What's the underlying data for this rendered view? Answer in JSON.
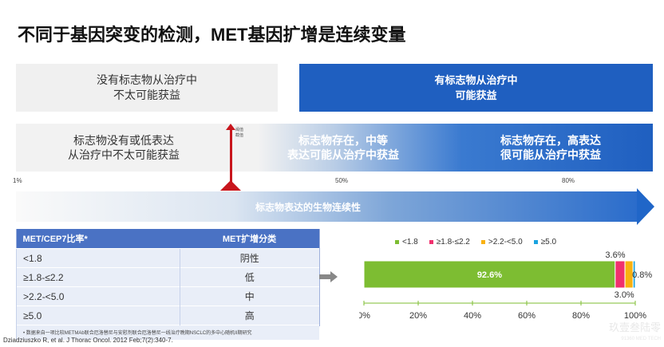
{
  "title": "不同于基因突变的检测，MET基因扩增是连续变量",
  "box_no_marker": [
    "没有标志物从治疗中",
    "不太可能获益"
  ],
  "box_marker": [
    "有标志物从治疗中",
    "可能获益"
  ],
  "row2": [
    [
      "标志物没有或低表达",
      "从治疗中不太可能获益"
    ],
    [
      "标志物存在，中等",
      "表达可能从治疗中获益"
    ],
    [
      "标志物存在，高表达",
      "很可能从治疗中获益"
    ]
  ],
  "threshold_label": [
    "阈值",
    "截值"
  ],
  "percent_marks": [
    "1%",
    "50%",
    "80%"
  ],
  "continuum_label": "标志物表达的生物连续性",
  "table": {
    "headers": [
      "MET/CEP7比率*",
      "MET扩增分类"
    ],
    "rows": [
      [
        "<1.8",
        "阴性"
      ],
      [
        "≥1.8-≤2.2",
        "低"
      ],
      [
        ">2.2-<5.0",
        "中"
      ],
      [
        "≥5.0",
        "高"
      ]
    ],
    "footnote": "• 数据来自一项比较METMAb联合厄洛替尼与安慰剂联合厄洛替尼一线治疗晚期NSCLC的多中心随机II期研究"
  },
  "citation": "Dziadziuszko R, et al. J Thorac Oncol. 2012 Feb;7(2):340-7.",
  "watermark": {
    "cn": "玖壹叁陆零",
    "en": "91360 MED TECH"
  },
  "chart_data": {
    "type": "bar",
    "orientation": "horizontal-stacked",
    "categories": [
      ""
    ],
    "series": [
      {
        "name": "<1.8",
        "values": [
          92.6
        ],
        "color": "#7dbd32",
        "label": "92.6%"
      },
      {
        "name": "≥1.8-≤2.2",
        "values": [
          3.6
        ],
        "color": "#f0306e",
        "label": "3.6%"
      },
      {
        "name": ">2.2-<5.0",
        "values": [
          3.0
        ],
        "color": "#f9b111",
        "label": "3.0%"
      },
      {
        "name": "≥5.0",
        "values": [
          0.8
        ],
        "color": "#1aa3e0",
        "label": "0.8%"
      }
    ],
    "xlim": [
      0,
      100
    ],
    "xticks": [
      "0%",
      "20%",
      "40%",
      "60%",
      "80%",
      "100%"
    ],
    "legend": "top"
  }
}
